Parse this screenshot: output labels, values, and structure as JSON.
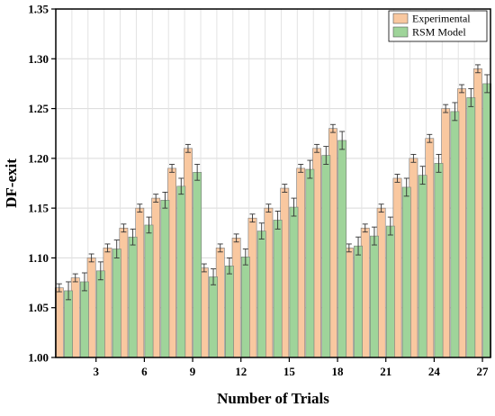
{
  "chart_data": {
    "type": "bar",
    "xlabel": "Number of Trials",
    "ylabel": "DF-exit",
    "ylim": [
      1.0,
      1.35
    ],
    "yticks": [
      "1.00",
      "1.05",
      "1.10",
      "1.15",
      "1.20",
      "1.25",
      "1.30",
      "1.35"
    ],
    "xtick_labels": [
      "3",
      "6",
      "9",
      "12",
      "15",
      "18",
      "21",
      "24",
      "27"
    ],
    "xtick_positions": [
      3,
      6,
      9,
      12,
      15,
      18,
      21,
      24,
      27
    ],
    "grid": true,
    "legend_position": "top-right",
    "categories": [
      1,
      2,
      3,
      4,
      5,
      6,
      7,
      8,
      9,
      10,
      11,
      12,
      13,
      14,
      15,
      16,
      17,
      18,
      19,
      20,
      21,
      22,
      23,
      24,
      25,
      26,
      27
    ],
    "series": [
      {
        "name": "Experimental",
        "color": "#f9c8a0",
        "values": [
          1.07,
          1.08,
          1.1,
          1.11,
          1.13,
          1.15,
          1.16,
          1.19,
          1.21,
          1.09,
          1.11,
          1.12,
          1.14,
          1.15,
          1.17,
          1.19,
          1.21,
          1.23,
          1.11,
          1.13,
          1.15,
          1.18,
          1.2,
          1.22,
          1.25,
          1.27,
          1.29
        ],
        "errors": [
          0.004,
          0.004,
          0.004,
          0.004,
          0.004,
          0.004,
          0.004,
          0.004,
          0.004,
          0.004,
          0.004,
          0.004,
          0.004,
          0.004,
          0.004,
          0.004,
          0.004,
          0.004,
          0.004,
          0.004,
          0.004,
          0.004,
          0.004,
          0.004,
          0.004,
          0.004,
          0.004
        ]
      },
      {
        "name": "RSM Model",
        "color": "#9fd49a",
        "values": [
          1.067,
          1.076,
          1.087,
          1.109,
          1.121,
          1.133,
          1.158,
          1.172,
          1.186,
          1.081,
          1.092,
          1.101,
          1.127,
          1.138,
          1.151,
          1.189,
          1.203,
          1.218,
          1.112,
          1.122,
          1.132,
          1.171,
          1.183,
          1.195,
          1.247,
          1.261,
          1.275
        ],
        "errors": [
          0.009,
          0.009,
          0.009,
          0.009,
          0.008,
          0.008,
          0.008,
          0.008,
          0.008,
          0.008,
          0.008,
          0.008,
          0.008,
          0.009,
          0.009,
          0.009,
          0.009,
          0.009,
          0.009,
          0.009,
          0.009,
          0.009,
          0.009,
          0.009,
          0.009,
          0.009,
          0.009
        ]
      }
    ]
  }
}
